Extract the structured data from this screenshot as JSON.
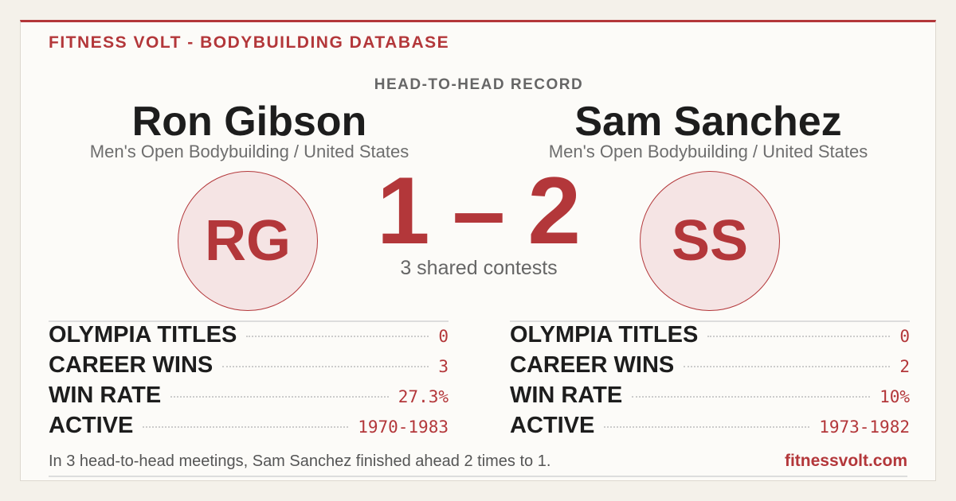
{
  "header": {
    "brand": "FITNESS VOLT - BODYBUILDING DATABASE",
    "subtitle": "HEAD-TO-HEAD RECORD"
  },
  "athletes": [
    {
      "name": "Ron Gibson",
      "category": "Men's Open Bodybuilding / United States",
      "initials": "RG",
      "stats": [
        {
          "label": "OLYMPIA TITLES",
          "value": "0"
        },
        {
          "label": "CAREER WINS",
          "value": "3"
        },
        {
          "label": "WIN RATE",
          "value": "27.3%"
        },
        {
          "label": "ACTIVE",
          "value": "1970-1983"
        }
      ]
    },
    {
      "name": "Sam Sanchez",
      "category": "Men's Open Bodybuilding / United States",
      "initials": "SS",
      "stats": [
        {
          "label": "OLYMPIA TITLES",
          "value": "0"
        },
        {
          "label": "CAREER WINS",
          "value": "2"
        },
        {
          "label": "WIN RATE",
          "value": "10%"
        },
        {
          "label": "ACTIVE",
          "value": "1973-1982"
        }
      ]
    }
  ],
  "score": {
    "left": "1",
    "separator": "–",
    "right": "2",
    "caption": "3 shared contests"
  },
  "footer": {
    "summary": "In 3 head-to-head meetings, Sam Sanchez finished ahead 2 times to 1.",
    "site": "fitnessvolt.com"
  }
}
